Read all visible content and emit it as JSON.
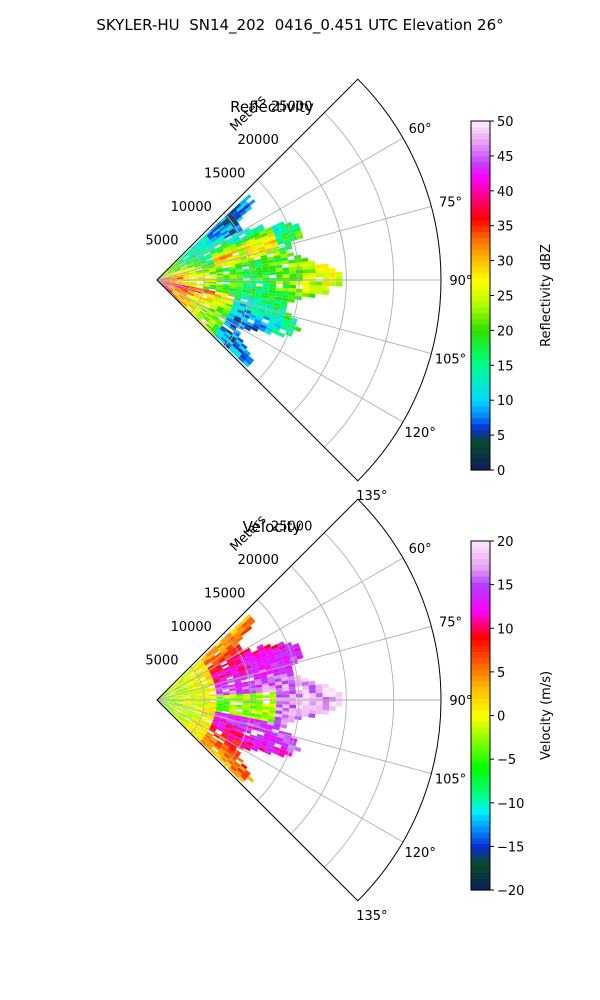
{
  "figure_title": "SKYLER-HU  SN14_202  0416_0.451 UTC Elevation 26°",
  "chart_data": [
    {
      "type": "polar-sector",
      "title": "Reflectivity",
      "radial_label": "Meters",
      "radial_ticks": [
        5000,
        10000,
        15000,
        20000,
        25000
      ],
      "radial_tick_labels": [
        "5000",
        "10000",
        "15000",
        "20000",
        "25000"
      ],
      "azimuth_ticks": [
        60,
        75,
        90,
        105,
        120,
        135
      ],
      "azimuth_tick_labels": [
        "60°",
        "75°",
        "90°",
        "105°",
        "120°",
        "135°"
      ],
      "azimuth_range": [
        45,
        135
      ],
      "range_max": 30000,
      "grid": true,
      "colorbar": {
        "label": "Reflectivity dBZ",
        "min": 0,
        "max": 50,
        "ticks": [
          0,
          5,
          10,
          15,
          20,
          25,
          30,
          35,
          40,
          45,
          50
        ],
        "tick_labels": [
          "0",
          "5",
          "10",
          "15",
          "20",
          "25",
          "30",
          "35",
          "40",
          "45",
          "50"
        ],
        "colors": [
          [
            0,
            "#0b1e5a"
          ],
          [
            4,
            "#0a4a2a"
          ],
          [
            6,
            "#0a2fd0"
          ],
          [
            8,
            "#0090ff"
          ],
          [
            10,
            "#00d8ff"
          ],
          [
            13,
            "#00f0c0"
          ],
          [
            16,
            "#00ff70"
          ],
          [
            20,
            "#30e000"
          ],
          [
            24,
            "#b8ff00"
          ],
          [
            27,
            "#ffff00"
          ],
          [
            30,
            "#ffc000"
          ],
          [
            33,
            "#ff7000"
          ],
          [
            36,
            "#ff0000"
          ],
          [
            39,
            "#ff0080"
          ],
          [
            42,
            "#ff00ff"
          ],
          [
            44,
            "#c040ff"
          ],
          [
            47,
            "#e8a0f0"
          ],
          [
            50,
            "#fcf0fc"
          ]
        ]
      }
    },
    {
      "type": "polar-sector",
      "title": "Velocity",
      "radial_label": "Meters",
      "radial_ticks": [
        5000,
        10000,
        15000,
        20000,
        25000
      ],
      "radial_tick_labels": [
        "5000",
        "10000",
        "15000",
        "20000",
        "25000"
      ],
      "azimuth_ticks": [
        60,
        75,
        90,
        105,
        120,
        135
      ],
      "azimuth_tick_labels": [
        "60°",
        "75°",
        "90°",
        "105°",
        "120°",
        "135°"
      ],
      "azimuth_range": [
        45,
        135
      ],
      "range_max": 30000,
      "grid": true,
      "colorbar": {
        "label": "Velocity (m/s)",
        "min": -20,
        "max": 20,
        "ticks": [
          -20,
          -15,
          -10,
          -5,
          0,
          5,
          10,
          15,
          20
        ],
        "tick_labels": [
          "−20",
          "−15",
          "−10",
          "−5",
          "0",
          "5",
          "10",
          "15",
          "20"
        ],
        "colors": [
          [
            -20,
            "#0b1e5a"
          ],
          [
            -17,
            "#0a4a2a"
          ],
          [
            -15,
            "#0a2fd0"
          ],
          [
            -13,
            "#0090ff"
          ],
          [
            -11,
            "#00f0ff"
          ],
          [
            -9,
            "#00ff80"
          ],
          [
            -6,
            "#00ff00"
          ],
          [
            -3,
            "#80ff00"
          ],
          [
            0,
            "#ffff00"
          ],
          [
            3,
            "#ffc000"
          ],
          [
            6,
            "#ff6000"
          ],
          [
            9,
            "#ff0000"
          ],
          [
            12,
            "#ff00ff"
          ],
          [
            15,
            "#b040ff"
          ],
          [
            17,
            "#e8a0f0"
          ],
          [
            20,
            "#fce8fc"
          ]
        ]
      }
    }
  ]
}
